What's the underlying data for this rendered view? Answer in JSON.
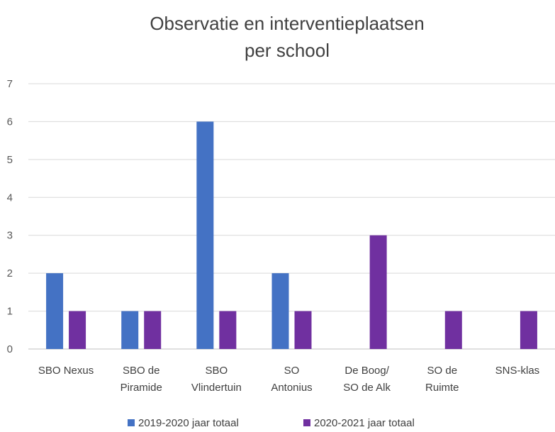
{
  "chart_data": {
    "type": "bar",
    "title_lines": [
      "Observatie en interventieplaatsen",
      "per school"
    ],
    "categories": [
      [
        "SBO Nexus"
      ],
      [
        "SBO de",
        "Piramide"
      ],
      [
        "SBO",
        "Vlindertuin"
      ],
      [
        "SO",
        "Antonius"
      ],
      [
        "De Boog/",
        "SO de Alk"
      ],
      [
        "SO de",
        "Ruimte"
      ],
      [
        "SNS-klas"
      ]
    ],
    "series": [
      {
        "name": "2019-2020 jaar totaal",
        "color": "#4472C4",
        "values": [
          2,
          1,
          6,
          2,
          0,
          0,
          0
        ]
      },
      {
        "name": "2020-2021 jaar totaal",
        "color": "#7030A0",
        "values": [
          1,
          1,
          1,
          1,
          3,
          1,
          1
        ]
      }
    ],
    "ylim": [
      0,
      7
    ],
    "yticks": [
      0,
      1,
      2,
      3,
      4,
      5,
      6,
      7
    ],
    "grid": true,
    "legend_position": "bottom"
  }
}
